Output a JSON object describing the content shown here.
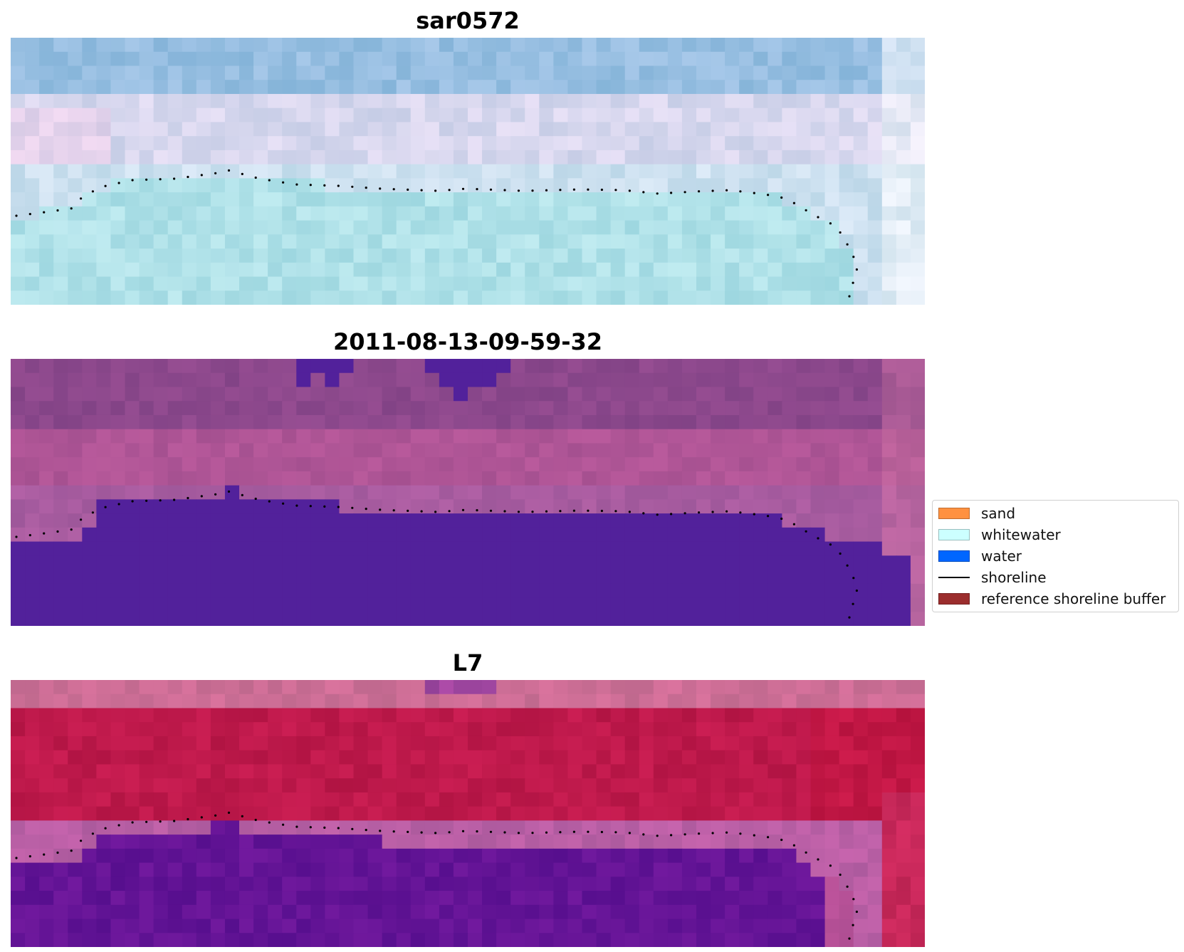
{
  "panels": [
    {
      "title": "sar0572",
      "palette": "rgb"
    },
    {
      "title": "2011-08-13-09-59-32",
      "palette": "classified"
    },
    {
      "title": "L7",
      "palette": "index"
    }
  ],
  "legend": {
    "items": [
      {
        "label": "sand",
        "color": "#ff9140"
      },
      {
        "label": "whitewater",
        "color": "#ccffff"
      },
      {
        "label": "water",
        "color": "#0066ff"
      },
      {
        "label": "shoreline",
        "color": "#000000",
        "kind": "line"
      },
      {
        "label": "reference shoreline buffer",
        "color": "#9b2d2d"
      }
    ]
  },
  "colors": {
    "water_class": "#52219b",
    "shoreline_dots": "#000000"
  }
}
